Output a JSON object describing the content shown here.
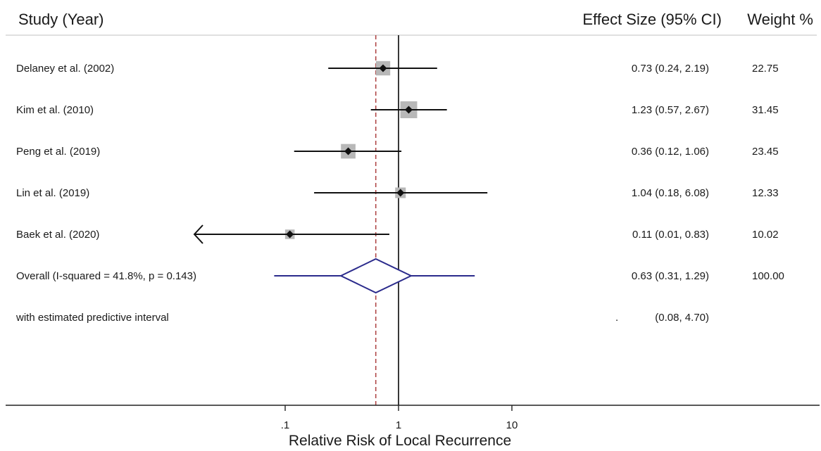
{
  "header": {
    "study_label": "Study (Year)",
    "effect_label": "Effect Size (95% CI)",
    "weight_label": "Weight %"
  },
  "chart_data": {
    "type": "forest",
    "title": "",
    "xlabel": "Relative Risk of Local Recurrence",
    "x_scale": "log",
    "xticks": [
      0.1,
      1,
      10
    ],
    "xtick_labels": [
      ".1",
      "1",
      "10"
    ],
    "xlim": [
      0.015,
      100
    ],
    "null_line": 1,
    "reference_line": 0.63,
    "studies": [
      {
        "label": "Delaney et al. (2002)",
        "est": 0.73,
        "lo": 0.24,
        "hi": 2.19,
        "effect_text": "0.73 (0.24, 2.19)",
        "weight": "22.75",
        "clipped_low": false
      },
      {
        "label": "Kim et al. (2010)",
        "est": 1.23,
        "lo": 0.57,
        "hi": 2.67,
        "effect_text": "1.23 (0.57, 2.67)",
        "weight": "31.45",
        "clipped_low": false
      },
      {
        "label": "Peng et al. (2019)",
        "est": 0.36,
        "lo": 0.12,
        "hi": 1.06,
        "effect_text": "0.36 (0.12, 1.06)",
        "weight": "23.45",
        "clipped_low": false
      },
      {
        "label": "Lin et al. (2019)",
        "est": 1.04,
        "lo": 0.18,
        "hi": 6.08,
        "effect_text": "1.04 (0.18, 6.08)",
        "weight": "12.33",
        "clipped_low": false
      },
      {
        "label": "Baek et al. (2020)",
        "est": 0.11,
        "lo": 0.01,
        "hi": 0.83,
        "effect_text": "0.11 (0.01, 0.83)",
        "weight": "10.02",
        "clipped_low": true
      }
    ],
    "overall": {
      "label": "Overall  (I-squared = 41.8%, p = 0.143)",
      "est": 0.63,
      "lo": 0.31,
      "hi": 1.29,
      "effect_text": "0.63 (0.31, 1.29)",
      "weight": "100.00"
    },
    "predictive": {
      "label": "with estimated predictive interval",
      "lo": 0.08,
      "hi": 4.7,
      "effect_text": "(0.08, 4.70)",
      "dot": "."
    },
    "colors": {
      "ci_line": "#111111",
      "point": "#111111",
      "weight_box": "#b8b8b8",
      "diamond": "#2b2b8c",
      "ref_line": "#b04848",
      "null_line": "#222222",
      "header_rule": "#d6d6d6"
    }
  }
}
